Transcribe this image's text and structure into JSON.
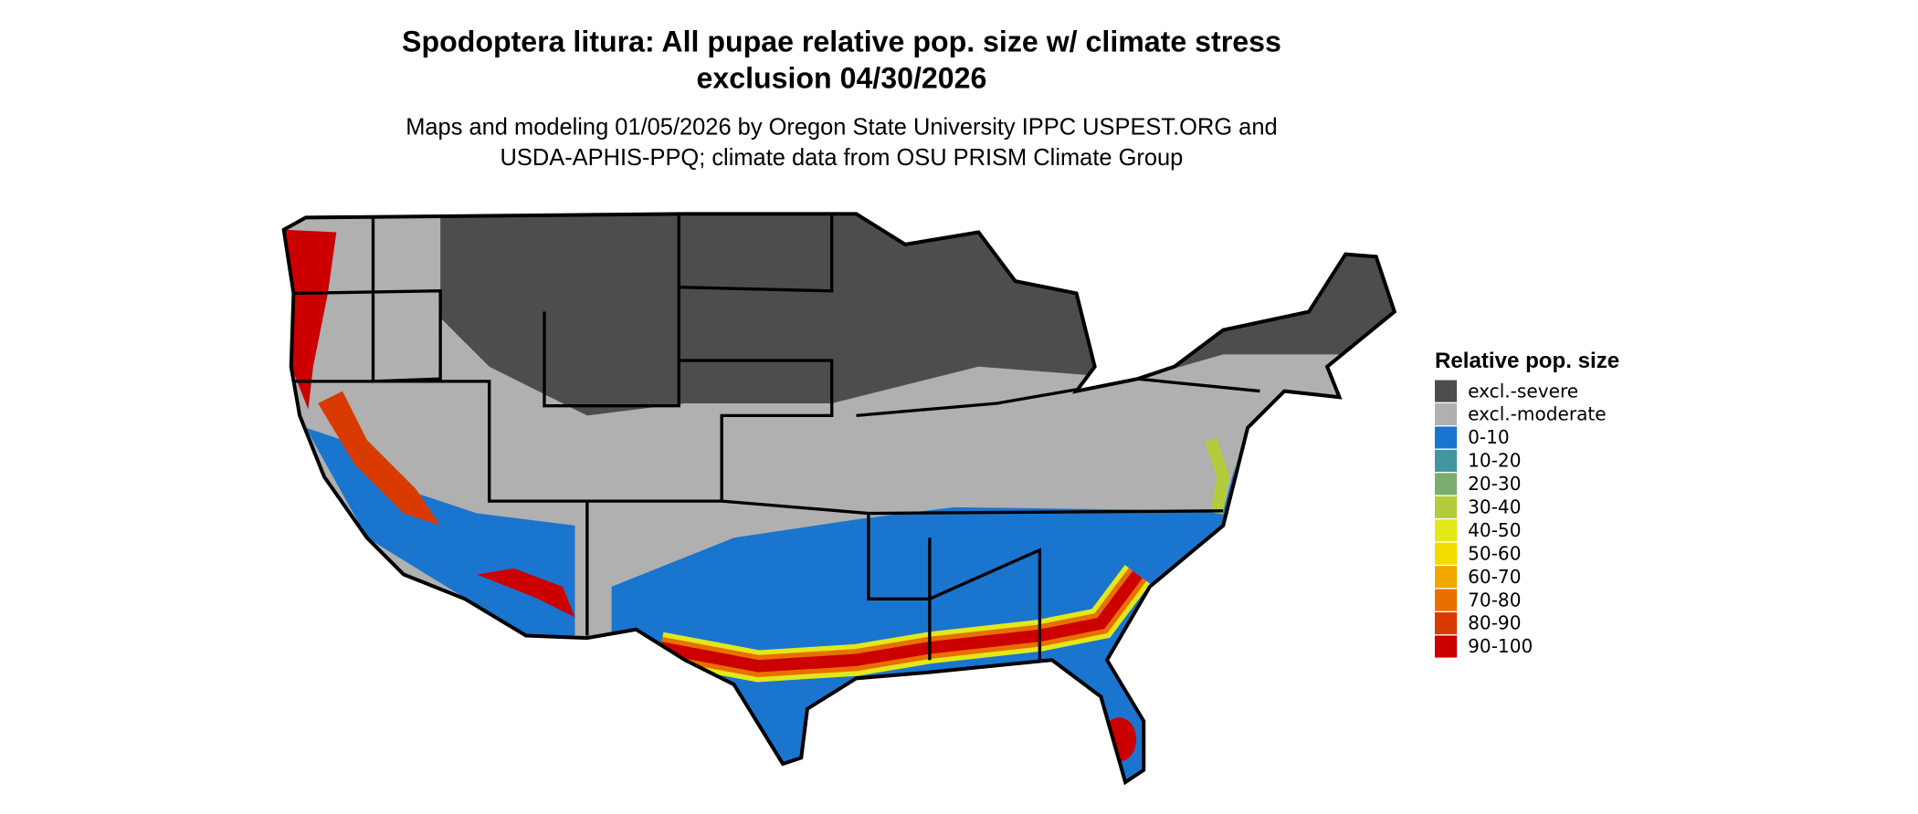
{
  "header": {
    "title": [
      "Spodoptera litura: All pupae relative pop. size w/ climate stress",
      "exclusion 04/30/2026"
    ],
    "subtitle": [
      "Maps and modeling 01/05/2026 by Oregon State University IPPC USPEST.ORG and",
      "USDA-APHIS-PPQ; climate data from OSU PRISM Climate Group"
    ]
  },
  "legend": {
    "title": "Relative pop. size",
    "items": [
      {
        "label": "excl.-severe",
        "color": "#4d4d4d"
      },
      {
        "label": "excl.-moderate",
        "color": "#b0b0b0"
      },
      {
        "label": "0-10",
        "color": "#1a75cf"
      },
      {
        "label": "10-20",
        "color": "#4396a0"
      },
      {
        "label": "20-30",
        "color": "#7aad6e"
      },
      {
        "label": "30-40",
        "color": "#b3cc3c"
      },
      {
        "label": "40-50",
        "color": "#e3e81a"
      },
      {
        "label": "50-60",
        "color": "#f5dc00"
      },
      {
        "label": "60-70",
        "color": "#f0a800"
      },
      {
        "label": "70-80",
        "color": "#e87000"
      },
      {
        "label": "80-90",
        "color": "#d83a00"
      },
      {
        "label": "90-100",
        "color": "#cc0000"
      }
    ]
  }
}
